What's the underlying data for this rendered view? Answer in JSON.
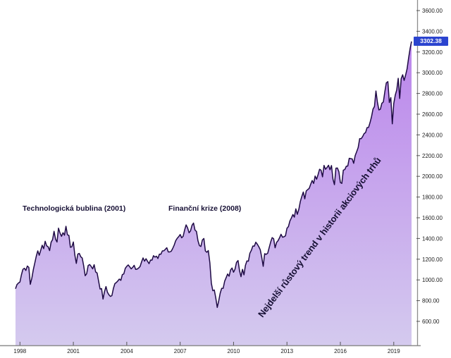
{
  "chart_data": {
    "type": "area",
    "x_start_year": 1997.75,
    "x_step_months": 1,
    "x_tick_years": [
      1998,
      2001,
      2004,
      2007,
      2010,
      2013,
      2016,
      2019
    ],
    "y_ticks": [
      3600,
      3400,
      3200,
      3000,
      2800,
      2600,
      2400,
      2200,
      2000,
      1800,
      1600,
      1400,
      1200,
      1000,
      800,
      600
    ],
    "y_axis_range": [
      600,
      3600
    ],
    "grid": false,
    "legend": false,
    "last_price_label": "3302.38",
    "values": [
      914,
      955,
      970,
      980,
      1049,
      1102,
      1112,
      1091,
      1134,
      1121,
      957,
      1017,
      1099,
      1164,
      1229,
      1280,
      1238,
      1286,
      1335,
      1302,
      1373,
      1329,
      1320,
      1283,
      1363,
      1389,
      1469,
      1394,
      1366,
      1499,
      1452,
      1421,
      1455,
      1431,
      1518,
      1436,
      1429,
      1315,
      1320,
      1366,
      1240,
      1160,
      1249,
      1256,
      1224,
      1211,
      1134,
      1041,
      1060,
      1139,
      1148,
      1130,
      1107,
      1147,
      1077,
      1067,
      990,
      912,
      916,
      815,
      886,
      936,
      880,
      856,
      841,
      848,
      917,
      964,
      975,
      990,
      1008,
      996,
      1051,
      1058,
      1112,
      1131,
      1145,
      1126,
      1107,
      1121,
      1141,
      1102,
      1104,
      1115,
      1130,
      1174,
      1212,
      1181,
      1204,
      1181,
      1157,
      1192,
      1191,
      1234,
      1220,
      1229,
      1207,
      1249,
      1248,
      1280,
      1281,
      1295,
      1311,
      1270,
      1270,
      1277,
      1304,
      1336,
      1378,
      1401,
      1418,
      1438,
      1407,
      1421,
      1482,
      1531,
      1503,
      1455,
      1474,
      1527,
      1549,
      1481,
      1468,
      1379,
      1331,
      1323,
      1386,
      1400,
      1280,
      1267,
      1283,
      1166,
      969,
      896,
      903,
      826,
      735,
      798,
      873,
      919,
      919,
      987,
      1021,
      1057,
      1036,
      1096,
      1115,
      1074,
      1104,
      1169,
      1187,
      1089,
      1031,
      1102,
      1049,
      1141,
      1183,
      1181,
      1258,
      1286,
      1327,
      1326,
      1364,
      1345,
      1321,
      1292,
      1219,
      1131,
      1253,
      1247,
      1258,
      1312,
      1366,
      1408,
      1398,
      1310,
      1362,
      1379,
      1407,
      1441,
      1412,
      1416,
      1426,
      1498,
      1515,
      1569,
      1598,
      1631,
      1606,
      1686,
      1633,
      1682,
      1757,
      1806,
      1848,
      1783,
      1859,
      1872,
      1884,
      1924,
      1960,
      1931,
      2003,
      1972,
      2018,
      2068,
      2059,
      1995,
      2105,
      2068,
      2086,
      2107,
      2063,
      2104,
      1972,
      1920,
      2079,
      2080,
      2044,
      1940,
      1932,
      2060,
      2065,
      2097,
      2099,
      2174,
      2171,
      2168,
      2126,
      2199,
      2239,
      2279,
      2364,
      2363,
      2384,
      2412,
      2423,
      2470,
      2472,
      2519,
      2575,
      2648,
      2674,
      2824,
      2714,
      2641,
      2648,
      2705,
      2718,
      2816,
      2902,
      2914,
      2712,
      2760,
      2507,
      2704,
      2784,
      2834,
      2946,
      2752,
      2942,
      2980,
      2926,
      2977,
      3038,
      3141,
      3231,
      3302.38
    ]
  },
  "annotations": {
    "tech_bubble": "Technologická bublina (2001)",
    "financial_crisis": "Finanční krize (2008)",
    "trend": "Nejdelší růstový trend v historii akciových trhů"
  },
  "colors": {
    "line": "#1e0a44",
    "fill_top": "#bb85ec",
    "fill_bottom": "#d4caee",
    "badge_bg": "#2b44cf",
    "badge_text": "#ffffff",
    "annotation": "#171035",
    "axis": "#8c8c8c",
    "tick": "#555555",
    "tick_text": "#222222"
  }
}
